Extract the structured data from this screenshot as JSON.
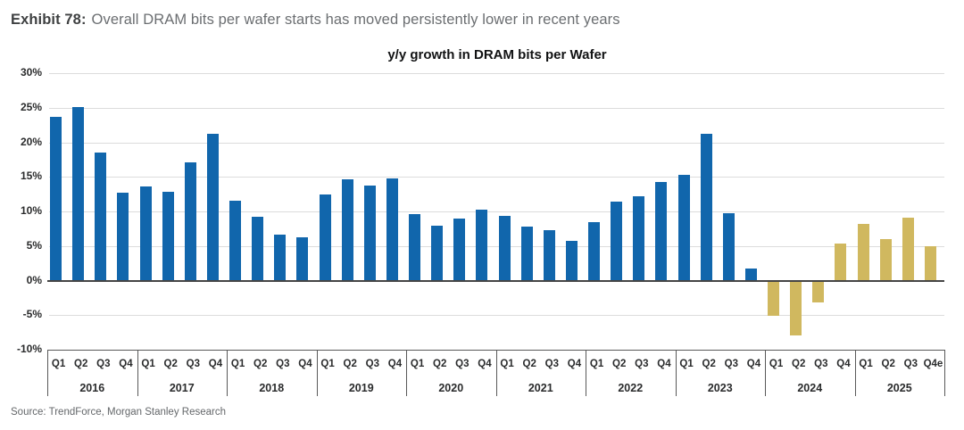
{
  "header": {
    "exhibit_label": "Exhibit 78:",
    "title": "Overall DRAM bits per wafer starts has moved persistently lower in recent years"
  },
  "source": "Source: TrendForce, Morgan Stanley Research",
  "colors": {
    "historical_bar": "#1166AC",
    "forecast_bar": "#D0B85F",
    "gridline": "#DCDCDC",
    "axis_dark": "#595959"
  },
  "chart_data": {
    "type": "bar",
    "title": "y/y growth in DRAM bits per Wafer",
    "xlabel": "",
    "ylabel": "",
    "ylim": [
      -10,
      30
    ],
    "grid": true,
    "legend": "none",
    "yticks": [
      30,
      25,
      20,
      15,
      10,
      5,
      0,
      -5,
      -10
    ],
    "ytick_labels": [
      "30%",
      "25%",
      "20%",
      "15%",
      "10%",
      "5%",
      "0%",
      "-5%",
      "-10%"
    ],
    "years": [
      {
        "year": "2016",
        "series": "historical",
        "quarters": [
          "Q1",
          "Q2",
          "Q3",
          "Q4"
        ],
        "values": [
          23.7,
          25.1,
          18.5,
          12.7
        ]
      },
      {
        "year": "2017",
        "series": "historical",
        "quarters": [
          "Q1",
          "Q2",
          "Q3",
          "Q4"
        ],
        "values": [
          13.6,
          12.8,
          17.1,
          21.2
        ]
      },
      {
        "year": "2018",
        "series": "historical",
        "quarters": [
          "Q1",
          "Q2",
          "Q3",
          "Q4"
        ],
        "values": [
          11.6,
          9.2,
          6.7,
          6.3
        ]
      },
      {
        "year": "2019",
        "series": "historical",
        "quarters": [
          "Q1",
          "Q2",
          "Q3",
          "Q4"
        ],
        "values": [
          12.4,
          14.7,
          13.8,
          14.8
        ]
      },
      {
        "year": "2020",
        "series": "historical",
        "quarters": [
          "Q1",
          "Q2",
          "Q3",
          "Q4"
        ],
        "values": [
          9.6,
          7.9,
          9.0,
          10.2
        ]
      },
      {
        "year": "2021",
        "series": "historical",
        "quarters": [
          "Q1",
          "Q2",
          "Q3",
          "Q4"
        ],
        "values": [
          9.4,
          7.8,
          7.3,
          5.8
        ]
      },
      {
        "year": "2022",
        "series": "historical",
        "quarters": [
          "Q1",
          "Q2",
          "Q3",
          "Q4"
        ],
        "values": [
          8.5,
          11.4,
          12.2,
          14.3
        ]
      },
      {
        "year": "2023",
        "series": "historical",
        "quarters": [
          "Q1",
          "Q2",
          "Q3",
          "Q4"
        ],
        "values": [
          15.3,
          21.2,
          9.7,
          1.7
        ]
      },
      {
        "year": "2024",
        "series": "forecast",
        "quarters": [
          "Q1",
          "Q2",
          "Q3",
          "Q4"
        ],
        "values": [
          -5.1,
          -7.9,
          -3.2,
          5.3
        ]
      },
      {
        "year": "2025",
        "series": "forecast",
        "quarters": [
          "Q1",
          "Q2",
          "Q3",
          "Q4e"
        ],
        "values": [
          8.2,
          6.0,
          9.1,
          5.0
        ]
      }
    ]
  }
}
